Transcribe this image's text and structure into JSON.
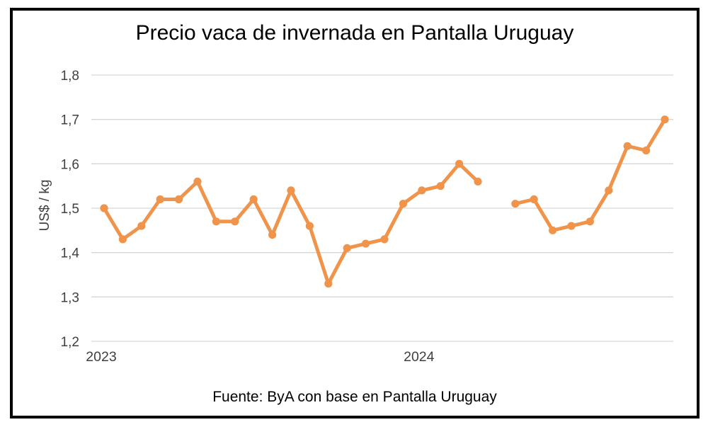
{
  "chart_data": {
    "type": "line",
    "title": "Precio vaca de invernada en Pantalla Uruguay",
    "ylabel": "US$ / kg",
    "xlabel": "",
    "ylim": [
      1.2,
      1.8
    ],
    "grid": "horizontal",
    "legend": "none",
    "line_color": "#EF944A",
    "gridline_color": "#D6D6D6",
    "tick_text_color": "#404040",
    "ytick_values": [
      1.8,
      1.7,
      1.6,
      1.5,
      1.4,
      1.3,
      1.2
    ],
    "ytick_labels": [
      "1,8",
      "1,7",
      "1,6",
      "1,5",
      "1,4",
      "1,3",
      "1,2"
    ],
    "x_year_labels": [
      {
        "label": "2023",
        "slot": 0
      },
      {
        "label": "2024",
        "slot": 17
      }
    ],
    "values": [
      1.5,
      1.43,
      1.46,
      1.52,
      1.52,
      1.56,
      1.47,
      1.47,
      1.52,
      1.44,
      1.54,
      1.46,
      1.33,
      1.41,
      1.42,
      1.43,
      1.51,
      1.54,
      1.55,
      1.6,
      1.56,
      null,
      1.51,
      1.52,
      1.45,
      1.46,
      1.47,
      1.54,
      1.64,
      1.63,
      1.7
    ]
  },
  "footer": {
    "source": "Fuente: ByA con base en Pantalla Uruguay"
  }
}
